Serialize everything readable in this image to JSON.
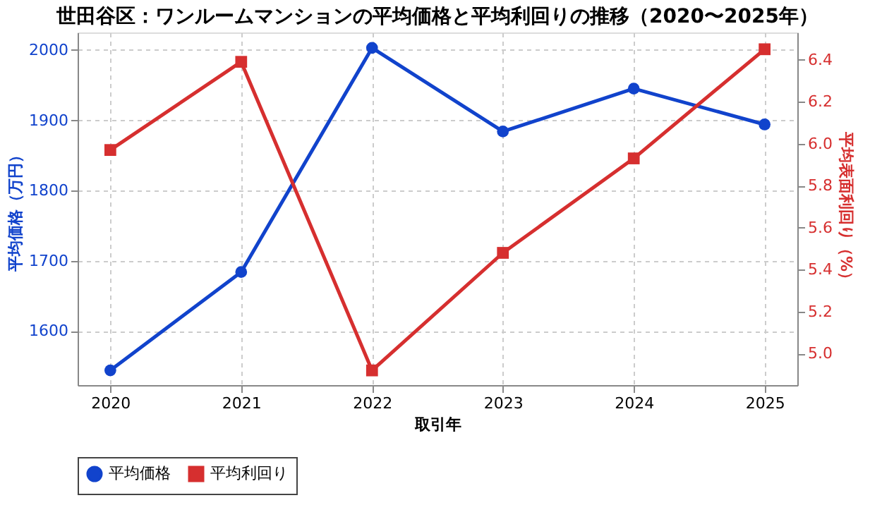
{
  "chart_data": {
    "type": "line",
    "title": "世田谷区：ワンルームマンションの平均価格と平均利回りの推移（2020〜2025年）",
    "xlabel": "取引年",
    "ylabel": "平均価格（万円）",
    "y2label": "平均表面利回り（%）",
    "x": [
      2020,
      2021,
      2022,
      2023,
      2024,
      2025
    ],
    "xlim": [
      2019.75,
      2025.25
    ],
    "xticks": [
      2020,
      2021,
      2022,
      2023,
      2024,
      2025
    ],
    "ylim": [
      1523,
      2025
    ],
    "yticks": [
      1600,
      1700,
      1800,
      1900,
      2000
    ],
    "y2lim": [
      4.85,
      6.53
    ],
    "y2ticks": [
      {
        "value": 5.0,
        "label": "5.0"
      },
      {
        "value": 5.2,
        "label": "5.2"
      },
      {
        "value": 5.4,
        "label": "5.4"
      },
      {
        "value": 5.6,
        "label": "5.6"
      },
      {
        "value": 5.8,
        "label": "5.8"
      },
      {
        "value": 6.0,
        "label": "6.0"
      },
      {
        "value": 6.2,
        "label": "6.2"
      },
      {
        "value": 6.4,
        "label": "6.4"
      }
    ],
    "series": [
      {
        "name": "平均価格",
        "color": "#1143cc",
        "marker": "circle",
        "values": [
          1544,
          1684,
          2003,
          1884,
          1945,
          1894
        ]
      },
      {
        "name": "平均利回り",
        "color": "#d62f2f",
        "marker": "square",
        "axis": "y2",
        "values": [
          5.97,
          6.39,
          4.92,
          5.48,
          5.93,
          6.45
        ]
      }
    ],
    "grid": true,
    "legend": "bottom",
    "line_style": "solid"
  }
}
